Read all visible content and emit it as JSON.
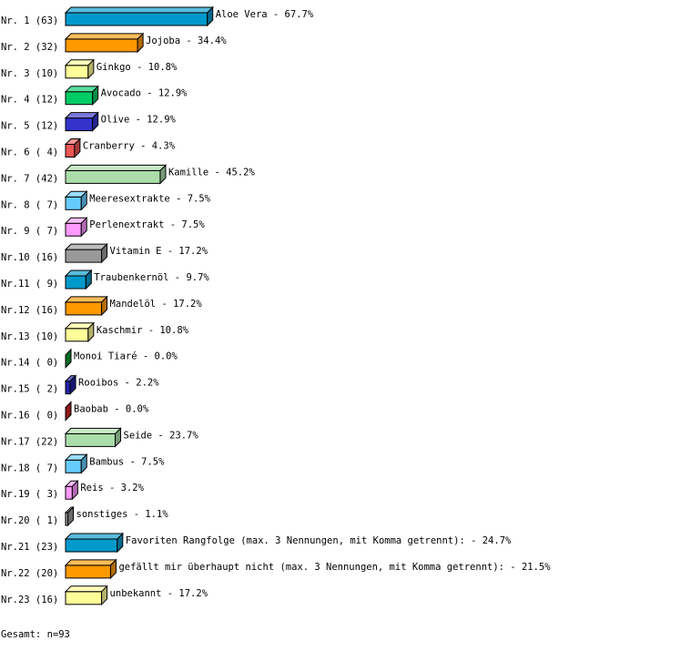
{
  "chart_data": {
    "type": "bar",
    "orientation": "horizontal",
    "style": "3d",
    "unit": "%",
    "row_labels": [
      "Nr. 1 (63)",
      "Nr. 2 (32)",
      "Nr. 3 (10)",
      "Nr. 4 (12)",
      "Nr. 5 (12)",
      "Nr. 6 ( 4)",
      "Nr. 7 (42)",
      "Nr. 8 ( 7)",
      "Nr. 9 ( 7)",
      "Nr.10 (16)",
      "Nr.11 ( 9)",
      "Nr.12 (16)",
      "Nr.13 (10)",
      "Nr.14 ( 0)",
      "Nr.15 ( 2)",
      "Nr.16 ( 0)",
      "Nr.17 (22)",
      "Nr.18 ( 7)",
      "Nr.19 ( 3)",
      "Nr.20 ( 1)",
      "Nr.21 (23)",
      "Nr.22 (20)",
      "Nr.23 (16)"
    ],
    "categories": [
      "Aloe Vera",
      "Jojoba",
      "Ginkgo",
      "Avocado",
      "Olive",
      "Cranberry",
      "Kamille",
      "Meeresextrakte",
      "Perlenextrakt",
      "Vitamin E",
      "Traubenkernöl",
      "Mandelöl",
      "Kaschmir",
      "Monoi Tiaré",
      "Rooibos",
      "Baobab",
      "Seide",
      "Bambus",
      "Reis",
      "sonstiges",
      "Favoriten Rangfolge (max. 3 Nennungen, mit Komma getrennt):",
      "gefällt mir überhaupt nicht (max. 3 Nennungen, mit Komma getrennt):",
      "unbekannt"
    ],
    "counts": [
      63,
      32,
      10,
      12,
      12,
      4,
      42,
      7,
      7,
      16,
      9,
      16,
      10,
      0,
      2,
      0,
      22,
      7,
      3,
      1,
      23,
      20,
      16
    ],
    "values": [
      67.7,
      34.4,
      10.8,
      12.9,
      12.9,
      4.3,
      45.2,
      7.5,
      7.5,
      17.2,
      9.7,
      17.2,
      10.8,
      0.0,
      2.2,
      0.0,
      23.7,
      7.5,
      3.2,
      1.1,
      24.7,
      21.5,
      17.2
    ],
    "colors": [
      "#0099cc",
      "#ff9900",
      "#ffff99",
      "#00cc66",
      "#3333cc",
      "#ee5555",
      "#aaddaa",
      "#66ccff",
      "#ff99ff",
      "#999999",
      "#0099cc",
      "#ff9900",
      "#ffff99",
      "#009933",
      "#2222aa",
      "#cc2222",
      "#aaddaa",
      "#66ccff",
      "#ff99ff",
      "#999999",
      "#0099cc",
      "#ff9900",
      "#ffff99"
    ],
    "total_label": "Gesamt: n=93"
  }
}
